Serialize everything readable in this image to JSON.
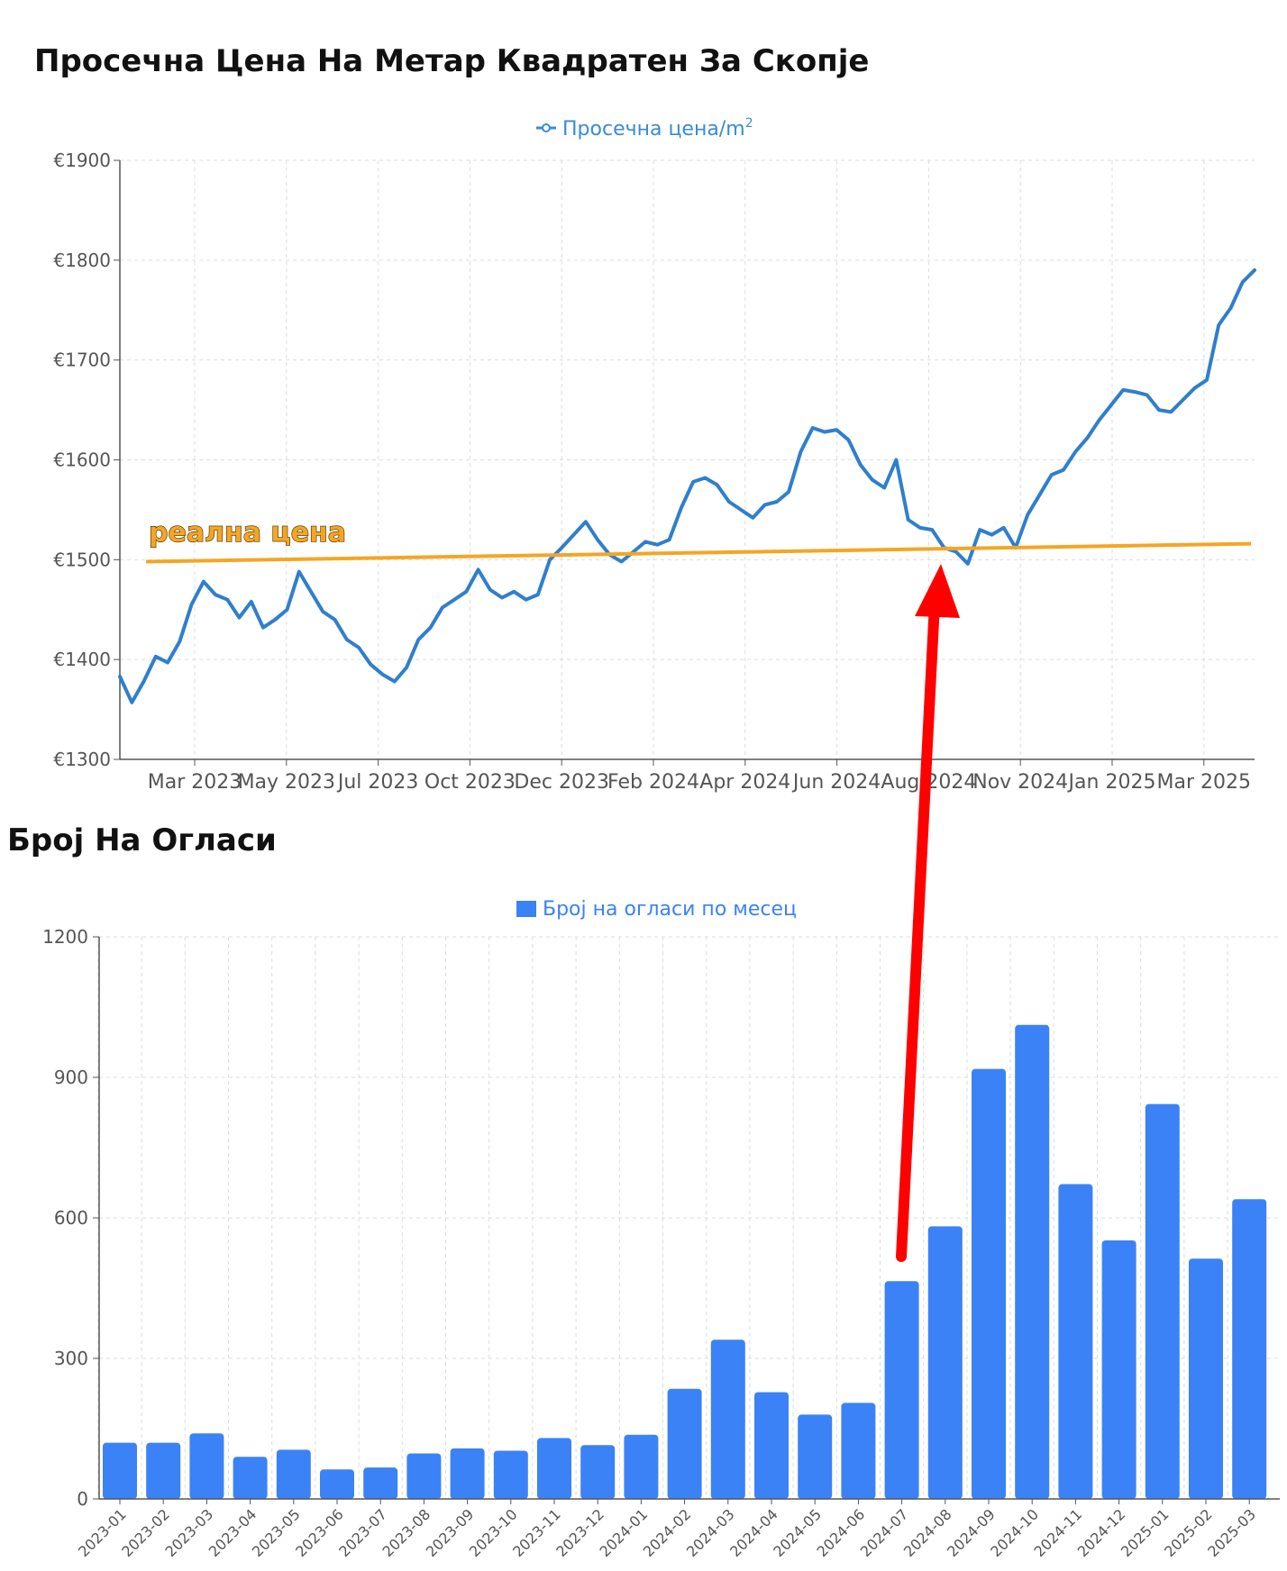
{
  "colors": {
    "line": "#2f7fcc",
    "bar": "#3b82f6",
    "trend": "#f5a524",
    "arrow": "#ff0000",
    "grid": "#dddddd",
    "axis": "#555555",
    "title": "#111111",
    "legend_line": "#3a8bd4",
    "legend_bar": "#3b82f6"
  },
  "chart_data": [
    {
      "type": "line",
      "title": "Просечна Цена На Метар Квадратен За Скопје",
      "legend_label": "Просечна цена/m",
      "legend_superscript": "2",
      "ylim": [
        1300,
        1900
      ],
      "y_ticks": [
        1900,
        1800,
        1700,
        1600,
        1500,
        1400,
        1300
      ],
      "y_tick_prefix": "€",
      "x_ticks": [
        "Mar 2023",
        "May 2023",
        "Jul 2023",
        "Oct 2023",
        "Dec 2023",
        "Feb 2024",
        "Apr 2024",
        "Jun 2024",
        "Aug 2024",
        "Nov 2024",
        "Jan 2025",
        "Mar 2025"
      ],
      "grid": true,
      "series": [
        {
          "values": [
            1383,
            1357,
            1378,
            1403,
            1397,
            1418,
            1455,
            1478,
            1465,
            1460,
            1442,
            1458,
            1432,
            1440,
            1450,
            1488,
            1468,
            1448,
            1440,
            1420,
            1412,
            1395,
            1385,
            1378,
            1392,
            1420,
            1432,
            1452,
            1460,
            1468,
            1490,
            1470,
            1462,
            1468,
            1460,
            1465,
            1500,
            1512,
            1525,
            1538,
            1520,
            1505,
            1498,
            1508,
            1518,
            1515,
            1520,
            1552,
            1578,
            1582,
            1575,
            1558,
            1550,
            1542,
            1555,
            1558,
            1568,
            1608,
            1632,
            1628,
            1630,
            1620,
            1595,
            1580,
            1572,
            1600,
            1540,
            1532,
            1530,
            1512,
            1508,
            1496,
            1530,
            1525,
            1532,
            1512,
            1545,
            1565,
            1585,
            1590,
            1608,
            1622,
            1640,
            1655,
            1670,
            1668,
            1665,
            1650,
            1648,
            1660,
            1672,
            1680,
            1735,
            1752,
            1778,
            1790
          ],
          "markers": false
        },
        {
          "name": "реална цена",
          "type": "trend",
          "values": [
            1498,
            1516
          ]
        }
      ]
    },
    {
      "type": "bar",
      "title": "Број На Огласи",
      "legend_label": "Број на огласи по месец",
      "ylim": [
        0,
        1200
      ],
      "y_ticks": [
        1200,
        900,
        600,
        300,
        0
      ],
      "grid": true,
      "categories": [
        "2023-01",
        "2023-02",
        "2023-03",
        "2023-04",
        "2023-05",
        "2023-06",
        "2023-07",
        "2023-08",
        "2023-09",
        "2023-10",
        "2023-11",
        "2023-12",
        "2024-01",
        "2024-02",
        "2024-03",
        "2024-04",
        "2024-05",
        "2024-06",
        "2024-07",
        "2024-08",
        "2024-09",
        "2024-10",
        "2024-11",
        "2024-12",
        "2025-01",
        "2025-02",
        "2025-03"
      ],
      "values": [
        120,
        120,
        140,
        90,
        105,
        63,
        67,
        97,
        108,
        103,
        130,
        115,
        137,
        235,
        340,
        228,
        180,
        205,
        465,
        582,
        918,
        1012,
        672,
        552,
        843,
        513,
        640
      ]
    }
  ]
}
